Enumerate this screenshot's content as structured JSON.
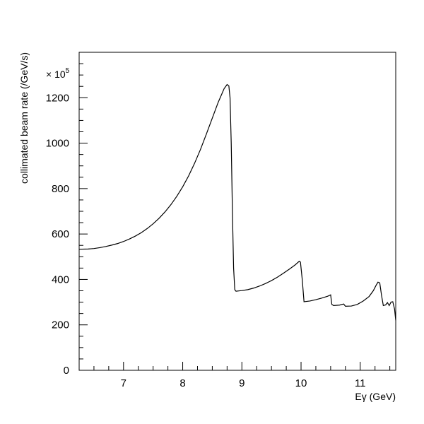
{
  "chart_data": {
    "type": "line",
    "title": "",
    "xlabel": "Eγ (GeV)",
    "ylabel": "collimated beam rate (/GeV/s)",
    "y_multiplier": "× 10",
    "y_multiplier_exp": "5",
    "xlim": [
      6.25,
      11.6
    ],
    "ylim": [
      0,
      1400
    ],
    "x_ticks": [
      7,
      8,
      9,
      10,
      11
    ],
    "y_ticks": [
      0,
      200,
      400,
      600,
      800,
      1000,
      1200
    ],
    "x_minor_step": 0.25,
    "y_minor_step": 50,
    "grid": false,
    "series": [
      {
        "points": [
          [
            6.25,
            533
          ],
          [
            6.4,
            534
          ],
          [
            6.5,
            536
          ],
          [
            6.6,
            540
          ],
          [
            6.7,
            545
          ],
          [
            6.8,
            551
          ],
          [
            6.9,
            558
          ],
          [
            7.0,
            567
          ],
          [
            7.1,
            578
          ],
          [
            7.2,
            591
          ],
          [
            7.3,
            606
          ],
          [
            7.4,
            624
          ],
          [
            7.5,
            645
          ],
          [
            7.6,
            669
          ],
          [
            7.7,
            697
          ],
          [
            7.8,
            729
          ],
          [
            7.9,
            766
          ],
          [
            8.0,
            808
          ],
          [
            8.1,
            856
          ],
          [
            8.2,
            911
          ],
          [
            8.3,
            972
          ],
          [
            8.4,
            1040
          ],
          [
            8.5,
            1110
          ],
          [
            8.6,
            1180
          ],
          [
            8.7,
            1240
          ],
          [
            8.75,
            1258
          ],
          [
            8.78,
            1252
          ],
          [
            8.8,
            1200
          ],
          [
            8.82,
            1000
          ],
          [
            8.84,
            700
          ],
          [
            8.86,
            450
          ],
          [
            8.88,
            355
          ],
          [
            8.9,
            348
          ],
          [
            9.0,
            351
          ],
          [
            9.1,
            355
          ],
          [
            9.2,
            362
          ],
          [
            9.3,
            371
          ],
          [
            9.4,
            382
          ],
          [
            9.5,
            395
          ],
          [
            9.6,
            410
          ],
          [
            9.7,
            427
          ],
          [
            9.8,
            445
          ],
          [
            9.9,
            464
          ],
          [
            9.97,
            480
          ],
          [
            9.99,
            476
          ],
          [
            10.02,
            400
          ],
          [
            10.05,
            302
          ],
          [
            10.15,
            305
          ],
          [
            10.25,
            311
          ],
          [
            10.35,
            318
          ],
          [
            10.45,
            326
          ],
          [
            10.5,
            332
          ],
          [
            10.52,
            290
          ],
          [
            10.55,
            285
          ],
          [
            10.65,
            287
          ],
          [
            10.72,
            292
          ],
          [
            10.75,
            282
          ],
          [
            10.85,
            283
          ],
          [
            10.95,
            290
          ],
          [
            11.05,
            305
          ],
          [
            11.15,
            325
          ],
          [
            11.22,
            350
          ],
          [
            11.27,
            375
          ],
          [
            11.3,
            388
          ],
          [
            11.33,
            385
          ],
          [
            11.36,
            330
          ],
          [
            11.39,
            285
          ],
          [
            11.43,
            288
          ],
          [
            11.46,
            298
          ],
          [
            11.49,
            285
          ],
          [
            11.52,
            300
          ],
          [
            11.55,
            302
          ],
          [
            11.58,
            270
          ],
          [
            11.6,
            220
          ]
        ]
      }
    ]
  }
}
